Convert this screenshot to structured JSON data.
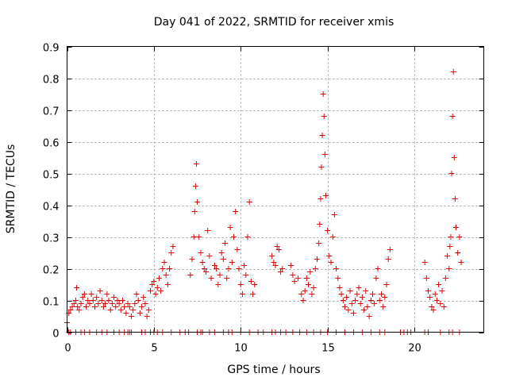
{
  "chart_data": {
    "type": "scatter",
    "title": "Day 041 of 2022, SRMTID for receiver xmis",
    "xlabel": "GPS time / hours",
    "ylabel": "SRMTID / TECUs",
    "xlim": [
      0,
      24
    ],
    "ylim": [
      0,
      0.9
    ],
    "grid": true,
    "marker": "+",
    "marker_color": "#e00000",
    "x_ticks": [
      0,
      5,
      10,
      15,
      20
    ],
    "x_tick_labels": [
      "0",
      "5",
      "10",
      "15",
      "20"
    ],
    "y_ticks": [
      0,
      0.1,
      0.2,
      0.3,
      0.4,
      0.5,
      0.6,
      0.7,
      0.8,
      0.9
    ],
    "y_tick_labels": [
      "0",
      "0.1",
      "0.2",
      "0.3",
      "0.4",
      "0.5",
      "0.6",
      "0.7",
      "0.8",
      "0.9"
    ],
    "series": [
      {
        "name": "SRMTID",
        "x": [
          0.0,
          0.1,
          0.2,
          0.3,
          0.4,
          0.5,
          0.55,
          0.6,
          0.7,
          0.8,
          0.9,
          1.0,
          1.1,
          1.2,
          1.3,
          1.4,
          1.5,
          1.6,
          1.7,
          1.8,
          1.9,
          2.0,
          2.1,
          2.2,
          2.3,
          2.4,
          2.5,
          2.6,
          2.7,
          2.8,
          2.9,
          3.0,
          3.1,
          3.2,
          3.3,
          3.4,
          3.5,
          3.6,
          3.7,
          3.8,
          3.9,
          4.0,
          4.1,
          4.2,
          4.3,
          4.4,
          4.5,
          4.6,
          4.7,
          4.8,
          4.9,
          5.0,
          5.1,
          5.2,
          5.3,
          5.4,
          5.5,
          5.6,
          5.7,
          5.8,
          5.9,
          6.0,
          6.1,
          7.1,
          7.2,
          7.3,
          7.35,
          7.4,
          7.45,
          7.5,
          7.6,
          7.7,
          7.8,
          7.9,
          8.0,
          8.1,
          8.2,
          8.3,
          8.5,
          8.6,
          8.7,
          8.8,
          8.9,
          9.0,
          9.1,
          9.2,
          9.3,
          9.4,
          9.5,
          9.6,
          9.7,
          9.8,
          9.9,
          10.0,
          10.1,
          10.2,
          10.3,
          10.4,
          10.5,
          10.6,
          10.7,
          10.8,
          11.8,
          11.9,
          12.0,
          12.1,
          12.2,
          12.3,
          12.4,
          12.9,
          13.0,
          13.1,
          13.3,
          13.5,
          13.6,
          13.7,
          13.8,
          13.9,
          14.0,
          14.1,
          14.2,
          14.3,
          14.4,
          14.5,
          14.55,
          14.6,
          14.65,
          14.7,
          14.75,
          14.8,
          14.85,
          14.9,
          15.0,
          15.1,
          15.2,
          15.3,
          15.4,
          15.5,
          15.6,
          15.7,
          15.8,
          15.9,
          16.0,
          16.1,
          16.2,
          16.3,
          16.4,
          16.5,
          16.6,
          16.7,
          16.8,
          16.9,
          17.0,
          17.1,
          17.2,
          17.3,
          17.4,
          17.5,
          17.6,
          17.7,
          17.8,
          17.9,
          18.0,
          18.1,
          18.2,
          18.3,
          18.4,
          18.5,
          18.6,
          20.6,
          20.7,
          20.8,
          20.9,
          21.0,
          21.1,
          21.2,
          21.3,
          21.4,
          21.5,
          21.6,
          21.7,
          21.8,
          21.9,
          22.0,
          22.05,
          22.1,
          22.15,
          22.2,
          22.25,
          22.3,
          22.35,
          22.4,
          22.5,
          22.6,
          22.7
        ],
        "y": [
          0.03,
          0.06,
          0.07,
          0.08,
          0.09,
          0.1,
          0.14,
          0.08,
          0.07,
          0.09,
          0.11,
          0.12,
          0.08,
          0.1,
          0.09,
          0.12,
          0.1,
          0.08,
          0.11,
          0.09,
          0.13,
          0.1,
          0.08,
          0.09,
          0.12,
          0.1,
          0.07,
          0.09,
          0.11,
          0.08,
          0.1,
          0.09,
          0.07,
          0.1,
          0.08,
          0.06,
          0.09,
          0.08,
          0.05,
          0.07,
          0.09,
          0.12,
          0.1,
          0.06,
          0.08,
          0.11,
          0.09,
          0.05,
          0.07,
          0.13,
          0.15,
          0.16,
          0.12,
          0.14,
          0.17,
          0.13,
          0.2,
          0.22,
          0.18,
          0.15,
          0.2,
          0.25,
          0.27,
          0.18,
          0.23,
          0.3,
          0.38,
          0.46,
          0.53,
          0.41,
          0.3,
          0.25,
          0.22,
          0.2,
          0.19,
          0.32,
          0.24,
          0.17,
          0.21,
          0.2,
          0.15,
          0.18,
          0.25,
          0.23,
          0.28,
          0.17,
          0.2,
          0.33,
          0.22,
          0.3,
          0.38,
          0.26,
          0.2,
          0.15,
          0.12,
          0.21,
          0.18,
          0.3,
          0.41,
          0.16,
          0.12,
          0.15,
          0.24,
          0.22,
          0.21,
          0.27,
          0.26,
          0.19,
          0.2,
          0.21,
          0.18,
          0.16,
          0.17,
          0.12,
          0.1,
          0.13,
          0.17,
          0.15,
          0.19,
          0.12,
          0.14,
          0.2,
          0.23,
          0.28,
          0.34,
          0.42,
          0.52,
          0.62,
          0.75,
          0.68,
          0.56,
          0.43,
          0.32,
          0.24,
          0.22,
          0.3,
          0.37,
          0.2,
          0.17,
          0.14,
          0.12,
          0.1,
          0.08,
          0.11,
          0.07,
          0.13,
          0.09,
          0.06,
          0.1,
          0.12,
          0.14,
          0.09,
          0.11,
          0.07,
          0.13,
          0.08,
          0.05,
          0.1,
          0.12,
          0.09,
          0.17,
          0.2,
          0.1,
          0.12,
          0.08,
          0.11,
          0.15,
          0.23,
          0.26,
          0.22,
          0.17,
          0.13,
          0.11,
          0.08,
          0.07,
          0.12,
          0.1,
          0.15,
          0.09,
          0.13,
          0.08,
          0.17,
          0.24,
          0.2,
          0.27,
          0.3,
          0.5,
          0.68,
          0.82,
          0.55,
          0.42,
          0.33,
          0.25,
          0.3,
          0.22
        ]
      },
      {
        "name": "zero-baseline",
        "x": [
          0.1,
          0.2,
          0.5,
          0.8,
          1.0,
          1.3,
          1.7,
          2.0,
          2.3,
          2.7,
          3.0,
          3.3,
          3.5,
          3.6,
          3.7,
          4.3,
          4.5,
          4.8,
          5.0,
          5.2,
          5.5,
          6.0,
          6.5,
          6.8,
          7.0,
          7.5,
          7.7,
          7.8,
          8.2,
          8.5,
          9.0,
          9.3,
          9.5,
          10.0,
          10.5,
          11.0,
          11.3,
          11.8,
          12.0,
          12.3,
          12.6,
          13.0,
          13.4,
          13.8,
          14.2,
          14.6,
          15.0,
          15.5,
          16.0,
          16.5,
          17.0,
          17.5,
          18.0,
          18.3,
          19.2,
          19.4,
          19.6,
          19.8,
          20.6,
          20.8,
          21.5,
          22.0,
          22.2,
          22.6
        ],
        "y": [
          0,
          0,
          0,
          0,
          0,
          0,
          0,
          0,
          0,
          0,
          0,
          0,
          0,
          0,
          0,
          0,
          0,
          0,
          0,
          0,
          0,
          0,
          0,
          0,
          0,
          0,
          0,
          0,
          0,
          0,
          0,
          0,
          0,
          0,
          0,
          0,
          0,
          0,
          0,
          0,
          0,
          0,
          0,
          0,
          0,
          0,
          0,
          0,
          0,
          0,
          0,
          0,
          0,
          0,
          0,
          0,
          0,
          0,
          0,
          0,
          0,
          0,
          0,
          0
        ]
      }
    ]
  }
}
